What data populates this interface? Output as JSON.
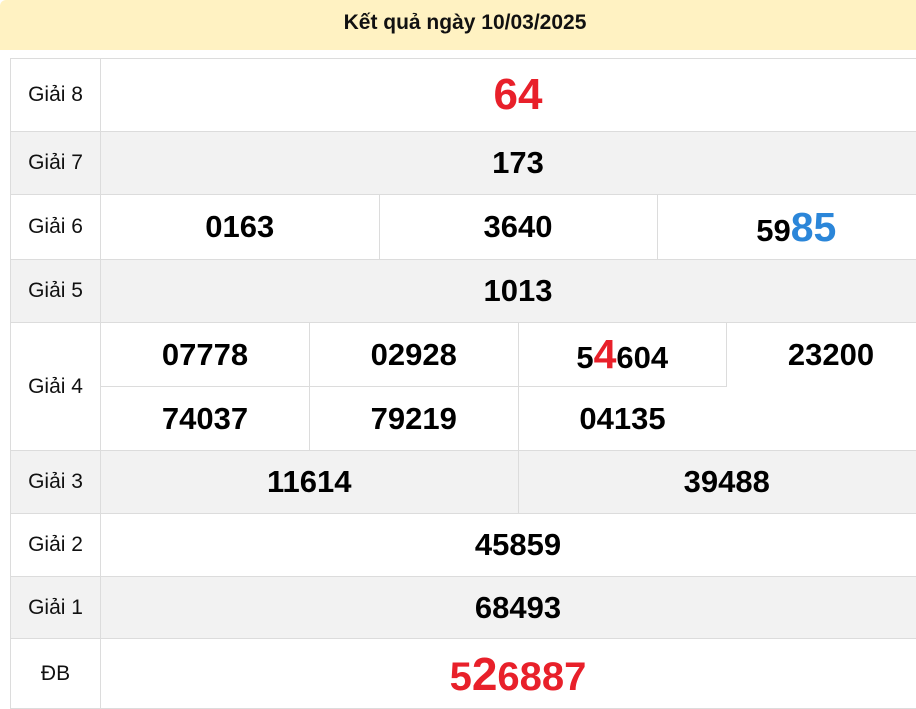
{
  "header": {
    "title": "Kết quả ngày 10/03/2025"
  },
  "colors": {
    "red": "#e8202a",
    "blue": "#2b86d9",
    "header_bg": "#fff2c2",
    "row_alt": "#f2f2f2"
  },
  "prizes": [
    {
      "label": "Giải 8",
      "numbers": [
        [
          {
            "t": "64",
            "c": "red",
            "big": true
          }
        ]
      ]
    },
    {
      "label": "Giải 7",
      "numbers": [
        [
          {
            "t": "173"
          }
        ]
      ]
    },
    {
      "label": "Giải 6",
      "numbers": [
        [
          {
            "t": "0163"
          }
        ],
        [
          {
            "t": "3640"
          }
        ],
        [
          {
            "t": "59"
          },
          {
            "t": "85",
            "c": "blue",
            "big": true
          }
        ]
      ]
    },
    {
      "label": "Giải 5",
      "numbers": [
        [
          {
            "t": "1013"
          }
        ]
      ]
    },
    {
      "label": "Giải 4",
      "rows": [
        [
          [
            {
              "t": "07778"
            }
          ],
          [
            {
              "t": "02928"
            }
          ],
          [
            {
              "t": "5"
            },
            {
              "t": "4",
              "c": "red",
              "big": true
            },
            {
              "t": "604"
            }
          ],
          [
            {
              "t": "23200"
            }
          ]
        ],
        [
          [
            {
              "t": "74037"
            }
          ],
          [
            {
              "t": "79219"
            }
          ],
          [
            {
              "t": "04135"
            }
          ]
        ]
      ]
    },
    {
      "label": "Giải 3",
      "numbers": [
        [
          {
            "t": "11614"
          }
        ],
        [
          {
            "t": "39488"
          }
        ]
      ]
    },
    {
      "label": "Giải 2",
      "numbers": [
        [
          {
            "t": "45859"
          }
        ]
      ]
    },
    {
      "label": "Giải 1",
      "numbers": [
        [
          {
            "t": "68493"
          }
        ]
      ]
    },
    {
      "label": "ĐB",
      "numbers": [
        [
          {
            "t": "5",
            "c": "red"
          },
          {
            "t": "2",
            "c": "red",
            "big": true
          },
          {
            "t": "6887",
            "c": "red"
          }
        ]
      ]
    }
  ]
}
